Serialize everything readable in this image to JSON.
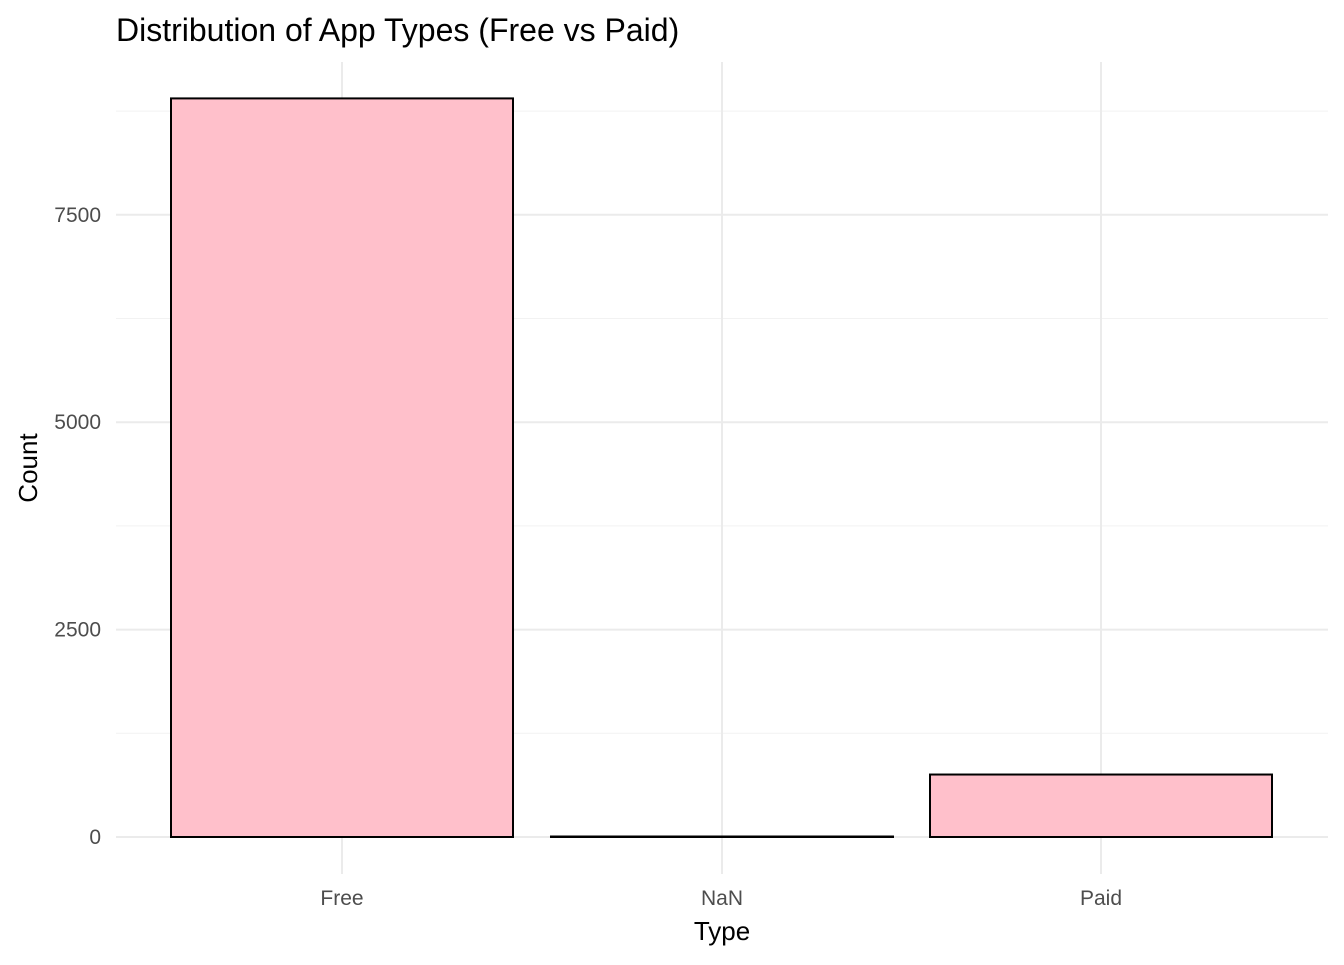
{
  "chart_data": {
    "type": "bar",
    "title": "Distribution of App Types (Free vs Paid)",
    "xlabel": "Type",
    "ylabel": "Count",
    "categories": [
      "Free",
      "NaN",
      "Paid"
    ],
    "values": [
      8903,
      1,
      753
    ],
    "ylim": [
      0,
      9350
    ],
    "yticks": [
      0,
      2500,
      5000,
      7500
    ],
    "yticks_labels": [
      "0",
      "2500",
      "5000",
      "7500"
    ],
    "grid": true,
    "bar_fill": "#ffc0cb",
    "bar_outline": "#000000"
  }
}
